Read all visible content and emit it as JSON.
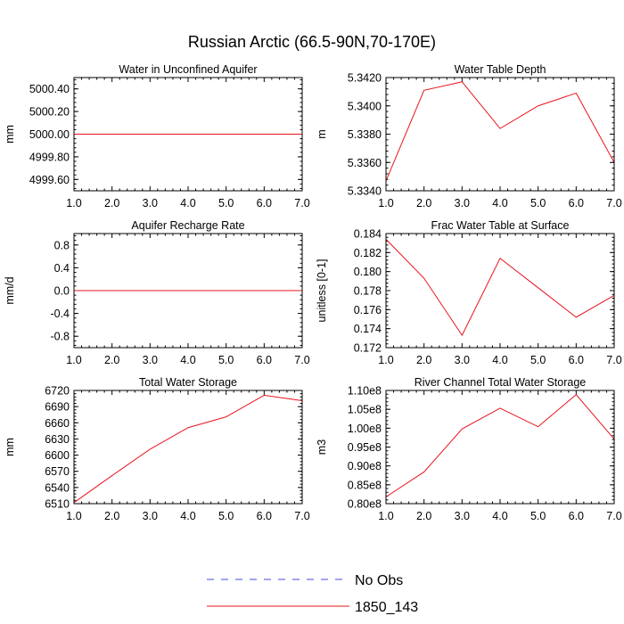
{
  "figure": {
    "title": "Russian Arctic (66.5-90N,70-170E)",
    "legend": [
      {
        "label": "No Obs",
        "color": "#4a4adf",
        "dash": "dashed"
      },
      {
        "label": "1850_143",
        "color": "#e8141e",
        "dash": "solid"
      }
    ]
  },
  "chart_data": [
    {
      "type": "line",
      "title": "Water in Unconfined Aquifer",
      "ylabel": "mm",
      "xlim": [
        1,
        7
      ],
      "ylim": [
        4999.5,
        5000.5
      ],
      "xticks": [
        1,
        2,
        3,
        4,
        5,
        6,
        7
      ],
      "xtick_labels": [
        "1.0",
        "2.0",
        "3.0",
        "4.0",
        "5.0",
        "6.0",
        "7.0"
      ],
      "yticks": [
        4999.6,
        4999.8,
        5000.0,
        5000.2,
        5000.4
      ],
      "ytick_labels": [
        "4999.60",
        "4999.80",
        "5000.00",
        "5000.20",
        "5000.40"
      ],
      "series": [
        {
          "color": "#e8141e",
          "x": [
            1,
            2,
            3,
            4,
            5,
            6,
            7
          ],
          "values": [
            5000,
            5000,
            5000,
            5000,
            5000,
            5000,
            5000
          ]
        }
      ]
    },
    {
      "type": "line",
      "title": "Water Table Depth",
      "ylabel": "m",
      "xlim": [
        1,
        7
      ],
      "ylim": [
        5.334,
        5.342
      ],
      "xticks": [
        1,
        2,
        3,
        4,
        5,
        6,
        7
      ],
      "xtick_labels": [
        "1.0",
        "2.0",
        "3.0",
        "4.0",
        "5.0",
        "6.0",
        "7.0"
      ],
      "yticks": [
        5.334,
        5.336,
        5.338,
        5.34,
        5.342
      ],
      "ytick_labels": [
        "5.3340",
        "5.3360",
        "5.3380",
        "5.3400",
        "5.3420"
      ],
      "series": [
        {
          "color": "#e8141e",
          "x": [
            1,
            2,
            3,
            4,
            5,
            6,
            7
          ],
          "values": [
            5.3347,
            5.3411,
            5.3417,
            5.3384,
            5.34,
            5.3409,
            5.336
          ]
        }
      ]
    },
    {
      "type": "line",
      "title": "Aquifer Recharge Rate",
      "ylabel": "mm/d",
      "xlim": [
        1,
        7
      ],
      "ylim": [
        -1,
        1
      ],
      "xticks": [
        1,
        2,
        3,
        4,
        5,
        6,
        7
      ],
      "xtick_labels": [
        "1.0",
        "2.0",
        "3.0",
        "4.0",
        "5.0",
        "6.0",
        "7.0"
      ],
      "yticks": [
        -0.8,
        -0.4,
        0,
        0.4,
        0.8
      ],
      "ytick_labels": [
        "-0.8",
        "-0.4",
        "0.0",
        "0.4",
        "0.8"
      ],
      "series": [
        {
          "color": "#e8141e",
          "x": [
            1,
            2,
            3,
            4,
            5,
            6,
            7
          ],
          "values": [
            0,
            0,
            0,
            0,
            0,
            0,
            0
          ]
        }
      ]
    },
    {
      "type": "line",
      "title": "Frac Water Table at Surface",
      "ylabel": "unitless [0-1]",
      "xlim": [
        1,
        7
      ],
      "ylim": [
        0.172,
        0.184
      ],
      "xticks": [
        1,
        2,
        3,
        4,
        5,
        6,
        7
      ],
      "xtick_labels": [
        "1.0",
        "2.0",
        "3.0",
        "4.0",
        "5.0",
        "6.0",
        "7.0"
      ],
      "yticks": [
        0.172,
        0.174,
        0.176,
        0.178,
        0.18,
        0.182,
        0.184
      ],
      "ytick_labels": [
        "0.172",
        "0.174",
        "0.176",
        "0.178",
        "0.180",
        "0.182",
        "0.184"
      ],
      "series": [
        {
          "color": "#e8141e",
          "x": [
            1,
            2,
            3,
            4,
            5,
            6,
            7
          ],
          "values": [
            0.1834,
            0.1793,
            0.1733,
            0.1814,
            0.1783,
            0.1752,
            0.1775
          ]
        }
      ]
    },
    {
      "type": "line",
      "title": "Total Water Storage",
      "ylabel": "mm",
      "xlim": [
        1,
        7
      ],
      "ylim": [
        6510,
        6720
      ],
      "xticks": [
        1,
        2,
        3,
        4,
        5,
        6,
        7
      ],
      "xtick_labels": [
        "1.0",
        "2.0",
        "3.0",
        "4.0",
        "5.0",
        "6.0",
        "7.0"
      ],
      "yticks": [
        6510,
        6540,
        6570,
        6600,
        6630,
        6660,
        6690,
        6720
      ],
      "ytick_labels": [
        "6510",
        "6540",
        "6570",
        "6600",
        "6630",
        "6660",
        "6690",
        "6720"
      ],
      "series": [
        {
          "color": "#e8141e",
          "x": [
            1,
            2,
            3,
            4,
            5,
            6,
            7
          ],
          "values": [
            6512,
            6562,
            6611,
            6651,
            6671,
            6711,
            6701
          ]
        }
      ]
    },
    {
      "type": "line",
      "title": "River Channel Total Water Storage",
      "ylabel": "m3",
      "xlim": [
        1,
        7
      ],
      "ylim": [
        0.8,
        1.1
      ],
      "xticks": [
        1,
        2,
        3,
        4,
        5,
        6,
        7
      ],
      "xtick_labels": [
        "1.0",
        "2.0",
        "3.0",
        "4.0",
        "5.0",
        "6.0",
        "7.0"
      ],
      "yticks": [
        0.8,
        0.85,
        0.9,
        0.95,
        1.0,
        1.05,
        1.1
      ],
      "ytick_labels": [
        "0.80e8",
        "0.85e8",
        "0.90e8",
        "0.95e8",
        "1.00e8",
        "1.05e8",
        "1.10e8"
      ],
      "series": [
        {
          "color": "#e8141e",
          "x": [
            1,
            2,
            3,
            4,
            5,
            6,
            7
          ],
          "values": [
            0.818,
            0.884,
            0.998,
            1.053,
            1.004,
            1.089,
            0.971
          ]
        }
      ]
    }
  ]
}
